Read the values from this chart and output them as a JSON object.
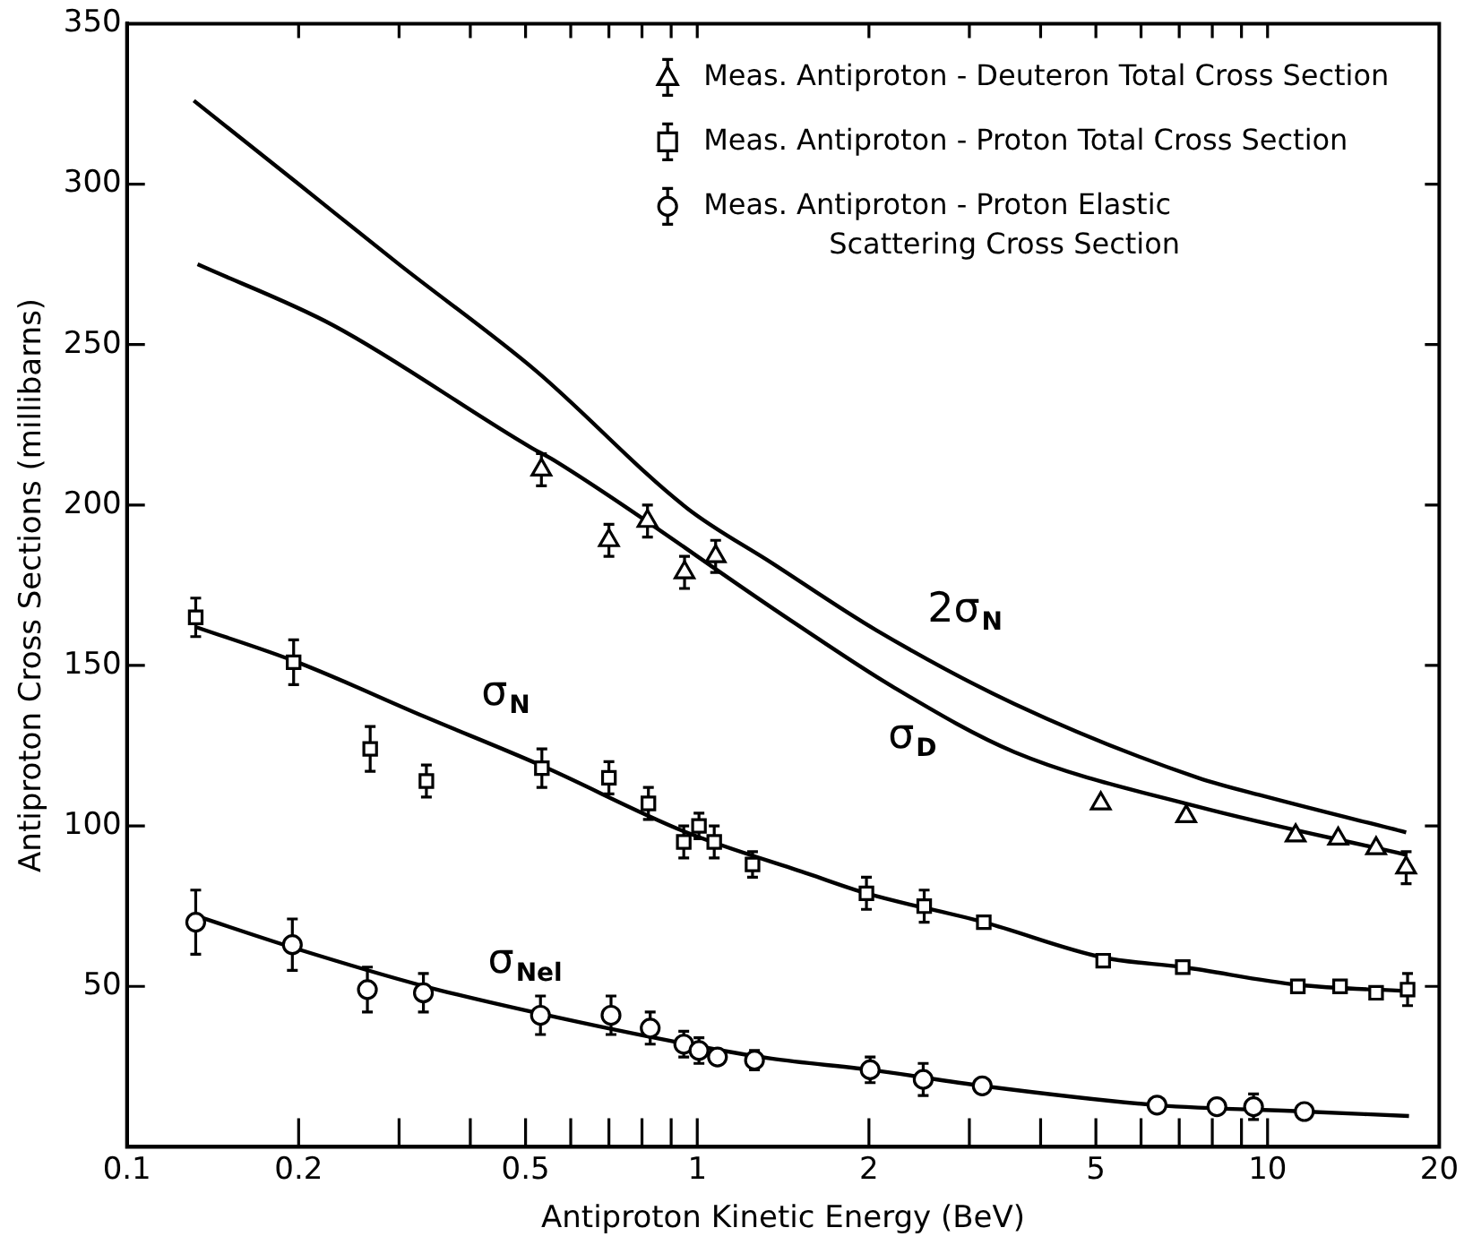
{
  "chart_data": {
    "type": "scatter",
    "xlabel": "Antiproton Kinetic Energy (BeV)",
    "ylabel": "Antiproton Cross Sections (millibarns)",
    "log": "x",
    "legend": "top right",
    "xlim": [
      0.1,
      20
    ],
    "ylim": [
      0,
      350
    ],
    "xticks": [
      0.1,
      0.2,
      {
        "value": 0.3,
        "label": null
      },
      {
        "value": 0.4,
        "label": null
      },
      0.5,
      {
        "value": 0.6,
        "label": null
      },
      {
        "value": 0.7,
        "label": null
      },
      {
        "value": 0.8,
        "label": null
      },
      {
        "value": 0.9,
        "label": null
      },
      1,
      2,
      {
        "value": 3,
        "label": null
      },
      {
        "value": 4,
        "label": null
      },
      5,
      {
        "value": 6,
        "label": null
      },
      {
        "value": 7,
        "label": null
      },
      {
        "value": 8,
        "label": null
      },
      {
        "value": 9,
        "label": null
      },
      10,
      20
    ],
    "yticks": [
      50,
      100,
      150,
      200,
      250,
      300,
      350
    ],
    "series": [
      {
        "name": "Meas. Antiproton - Deuteron Total Cross Section",
        "marker": "triangle",
        "color": "#000000",
        "x": [
          0.533,
          0.7,
          0.818,
          0.95,
          1.077,
          5.1,
          7.2,
          11.2,
          13.3,
          15.5,
          17.5
        ],
        "values": [
          211,
          189,
          195,
          179,
          184,
          107,
          103,
          97,
          96,
          93,
          87
        ],
        "errors": [
          5,
          5,
          5,
          5,
          5,
          null,
          null,
          null,
          null,
          null,
          5
        ]
      },
      {
        "name": "Meas. Antiproton - Proton Total Cross Section",
        "marker": "square",
        "color": "#000000",
        "x": [
          0.132,
          0.196,
          0.267,
          0.335,
          0.534,
          0.7,
          0.821,
          0.947,
          1.007,
          1.071,
          1.25,
          1.98,
          2.5,
          3.18,
          5.15,
          7.1,
          11.3,
          13.4,
          15.5,
          17.6
        ],
        "values": [
          165,
          151,
          124,
          114,
          118,
          115,
          107,
          95,
          100,
          95,
          88,
          79,
          75,
          70,
          58,
          56,
          50,
          50,
          48,
          49
        ],
        "errors": [
          6,
          7,
          7,
          5,
          6,
          5,
          5,
          5,
          4,
          5,
          4,
          5,
          5,
          null,
          null,
          null,
          null,
          null,
          null,
          5
        ]
      },
      {
        "name": "Meas. Antiproton - Proton Elastic\nScattering Cross Section",
        "marker": "circle",
        "color": "#000000",
        "x": [
          0.132,
          0.195,
          0.264,
          0.331,
          0.531,
          0.706,
          0.827,
          0.947,
          1.007,
          1.085,
          1.26,
          2.01,
          2.49,
          3.16,
          6.4,
          8.15,
          9.45,
          11.6
        ],
        "values": [
          70,
          63,
          49,
          48,
          41,
          41,
          37,
          32,
          30,
          28,
          27,
          24,
          21,
          19,
          13,
          12.5,
          12.5,
          11
        ],
        "errors": [
          10,
          8,
          7,
          6,
          6,
          6,
          5,
          4,
          4,
          null,
          3,
          4,
          5,
          null,
          null,
          null,
          4,
          null
        ]
      },
      {
        "name": "2σ$_{N}$",
        "type": "line",
        "marker": "none",
        "color": "#000000",
        "x": [
          0.131,
          0.2,
          0.3,
          0.52,
          0.96,
          1.35,
          2.06,
          3.6,
          7.55,
          10,
          17.5
        ],
        "values": [
          326,
          300,
          275,
          242,
          199,
          182,
          161,
          138,
          115,
          109,
          98
        ]
      },
      {
        "name": "σ$_{D}$",
        "type": "line",
        "marker": "none",
        "color": "#000000",
        "x": [
          0.133,
          0.23,
          0.51,
          0.56,
          1.46,
          2.22,
          3.6,
          7.55,
          17.5
        ],
        "values": [
          275,
          256,
          218,
          214,
          164,
          143,
          123,
          106,
          91
        ]
      },
      {
        "name": "σ$_{N}$",
        "type": "line",
        "marker": "none",
        "color": "#000000",
        "x": [
          0.132,
          0.199,
          0.333,
          0.53,
          0.957,
          1.57,
          1.98,
          3.18,
          5.15,
          7.1,
          11.3,
          17.6
        ],
        "values": [
          162,
          151,
          134,
          119,
          98,
          85,
          79,
          70,
          59,
          56,
          50.5,
          48.5
        ]
      },
      {
        "name": "σ$_{Nel}$",
        "type": "line",
        "marker": "none",
        "color": "#000000",
        "x": [
          0.132,
          0.196,
          0.333,
          0.53,
          0.96,
          1.35,
          2.01,
          3.16,
          6.4,
          11.6,
          17.7
        ],
        "values": [
          72,
          62,
          50,
          41.5,
          32,
          27.5,
          24,
          19,
          13,
          11,
          9.6
        ]
      }
    ]
  }
}
